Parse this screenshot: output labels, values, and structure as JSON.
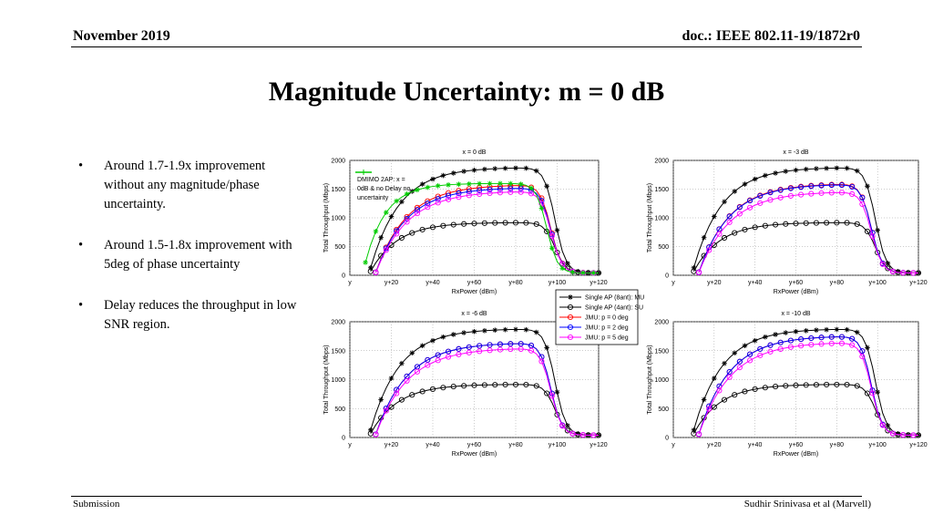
{
  "header": {
    "left": "November 2019",
    "right": "doc.: IEEE 802.11-19/1872r0"
  },
  "title": "Magnitude Uncertainty: m = 0 dB",
  "bullets": [
    "Around 1.7-1.9x improvement without any magnitude/phase uncertainty.",
    "Around 1.5-1.8x improvement with 5deg of phase uncertainty",
    "Delay reduces the throughput in low SNR region."
  ],
  "bullet_char": "•",
  "footer": {
    "left": "Submission",
    "right": "Sudhir Srinivasa et al (Marvell)"
  },
  "legend": [
    {
      "name": "Single AP (8ant): MU",
      "color": "#000000",
      "marker": "star"
    },
    {
      "name": "Single AP (4ant): SU",
      "color": "#000000",
      "marker": "circle"
    },
    {
      "name": "JMU: p = 0 deg",
      "color": "#ff0000",
      "marker": "circle"
    },
    {
      "name": "JMU: p = 2 deg",
      "color": "#0000ff",
      "marker": "circle"
    },
    {
      "name": "JMU: p = 5 deg",
      "color": "#ff00ff",
      "marker": "circle"
    }
  ],
  "annotation": [
    "DMIMO 2AP: x =",
    "0dB & no Delay no",
    "uncertainty"
  ],
  "annotation_color": "#00cc00",
  "chart_data": [
    {
      "type": "line",
      "title": "x = 0 dB",
      "xlabel": "RxPower (dBm)",
      "ylabel": "Total Throughput (Mbps)",
      "xticks": [
        "y",
        "y+20",
        "y+40",
        "y+60",
        "y+80",
        "y+100",
        "y+120"
      ],
      "xlim": [
        0,
        120
      ],
      "ylim": [
        0,
        2000
      ],
      "yticks": [
        0,
        500,
        1000,
        1500,
        2000
      ],
      "grid": true,
      "plateaus": {
        "mu": 1880,
        "su": 920,
        "p0": 1580,
        "p2": 1530,
        "p5": 1470,
        "dmimo": 1600
      },
      "has_dmimo": true
    },
    {
      "type": "line",
      "title": "x = -3 dB",
      "xlabel": "RxPower (dBm)",
      "ylabel": "Total Throughput (Mbps)",
      "xticks": [
        "y",
        "y+20",
        "y+40",
        "y+60",
        "y+80",
        "y+100",
        "y+120"
      ],
      "xlim": [
        0,
        120
      ],
      "ylim": [
        0,
        2000
      ],
      "yticks": [
        0,
        500,
        1000,
        1500,
        2000
      ],
      "grid": true,
      "plateaus": {
        "mu": 1880,
        "su": 920,
        "p0": 1600,
        "p2": 1590,
        "p5": 1460
      }
    },
    {
      "type": "line",
      "title": "x = -6 dB",
      "xlabel": "RxPower (dBm)",
      "ylabel": "Total Throughput (Mbps)",
      "xticks": [
        "y",
        "y+20",
        "y+40",
        "y+60",
        "y+80",
        "y+100",
        "y+120"
      ],
      "xlim": [
        0,
        120
      ],
      "ylim": [
        0,
        2000
      ],
      "yticks": [
        0,
        500,
        1000,
        1500,
        2000
      ],
      "grid": true,
      "plateaus": {
        "mu": 1880,
        "su": 920,
        "p0": 1640,
        "p2": 1640,
        "p5": 1550
      }
    },
    {
      "type": "line",
      "title": "x = -10 dB",
      "xlabel": "RxPower (dBm)",
      "ylabel": "Total Throughput (Mbps)",
      "xticks": [
        "y",
        "y+20",
        "y+40",
        "y+60",
        "y+80",
        "y+100",
        "y+120"
      ],
      "xlim": [
        0,
        120
      ],
      "ylim": [
        0,
        2000
      ],
      "yticks": [
        0,
        500,
        1000,
        1500,
        2000
      ],
      "grid": true,
      "plateaus": {
        "mu": 1880,
        "su": 920,
        "p0": 1760,
        "p2": 1760,
        "p5": 1650
      }
    }
  ]
}
